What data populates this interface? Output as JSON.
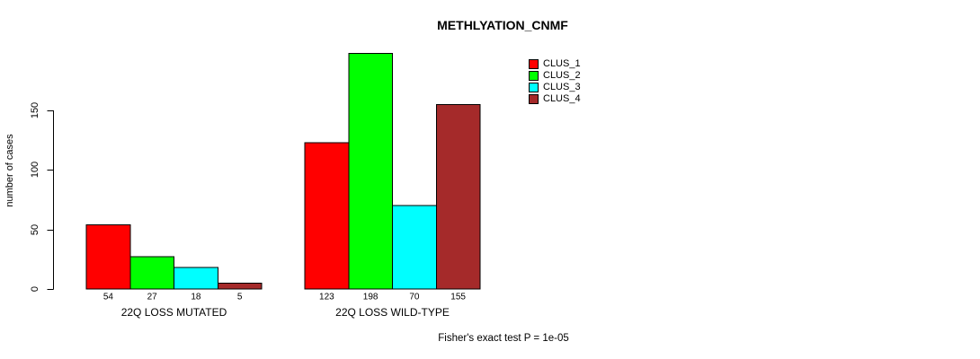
{
  "chart_data": {
    "type": "bar",
    "title": "METHLYATION_CNMF",
    "ylabel": "number of cases",
    "xlabel": "",
    "yticks": [
      0,
      50,
      100,
      150
    ],
    "ylim": [
      0,
      198
    ],
    "grid": false,
    "legend_position": "top-right",
    "bar_border_color": "#000000",
    "categories": [
      "22Q LOSS MUTATED",
      "22Q LOSS WILD-TYPE"
    ],
    "series": [
      {
        "name": "CLUS_1",
        "color": "#ff0000",
        "values": [
          54,
          123
        ]
      },
      {
        "name": "CLUS_2",
        "color": "#00ff00",
        "values": [
          27,
          198
        ]
      },
      {
        "name": "CLUS_3",
        "color": "#00ffff",
        "values": [
          18,
          70
        ]
      },
      {
        "name": "CLUS_4",
        "color": "#a52a2a",
        "values": [
          5,
          155
        ]
      }
    ],
    "value_labels_shown": true,
    "annotation": "Fisher's exact test P = 1e-05"
  }
}
